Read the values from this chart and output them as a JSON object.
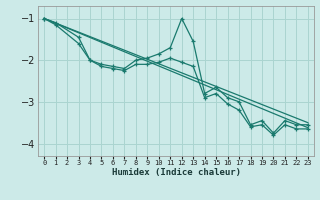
{
  "xlabel": "Humidex (Indice chaleur)",
  "bg_color": "#cceae8",
  "grid_color": "#aad4d0",
  "line_color": "#1a7a6e",
  "xlim": [
    -0.5,
    23.5
  ],
  "ylim": [
    -4.3,
    -0.7
  ],
  "xticks": [
    0,
    1,
    2,
    3,
    4,
    5,
    6,
    7,
    8,
    9,
    10,
    11,
    12,
    13,
    14,
    15,
    16,
    17,
    18,
    19,
    20,
    21,
    22,
    23
  ],
  "yticks": [
    -4,
    -3,
    -2,
    -1
  ],
  "line1_x": [
    0,
    1,
    3,
    4,
    5,
    6,
    7,
    8,
    9,
    10,
    11,
    12,
    13,
    14,
    15,
    16,
    17,
    18,
    19,
    20,
    21,
    22,
    23
  ],
  "line1_y": [
    -1.0,
    -1.1,
    -1.45,
    -2.0,
    -2.1,
    -2.15,
    -2.2,
    -2.0,
    -1.95,
    -1.85,
    -1.7,
    -1.0,
    -1.55,
    -2.8,
    -2.65,
    -2.9,
    -3.0,
    -3.55,
    -3.45,
    -3.75,
    -3.45,
    -3.55,
    -3.55
  ],
  "line2_x": [
    0,
    1,
    3,
    4,
    5,
    6,
    7,
    8,
    9,
    10,
    11,
    12,
    13,
    14,
    15,
    16,
    17,
    18,
    19,
    20,
    21,
    22,
    23
  ],
  "line2_y": [
    -1.0,
    -1.15,
    -1.6,
    -2.0,
    -2.15,
    -2.2,
    -2.25,
    -2.1,
    -2.1,
    -2.05,
    -1.95,
    -2.05,
    -2.15,
    -2.9,
    -2.8,
    -3.05,
    -3.2,
    -3.6,
    -3.55,
    -3.8,
    -3.55,
    -3.65,
    -3.65
  ],
  "line3_x": [
    0,
    23
  ],
  "line3_y": [
    -1.0,
    -3.5
  ],
  "line4_x": [
    0,
    23
  ],
  "line4_y": [
    -1.0,
    -3.62
  ]
}
